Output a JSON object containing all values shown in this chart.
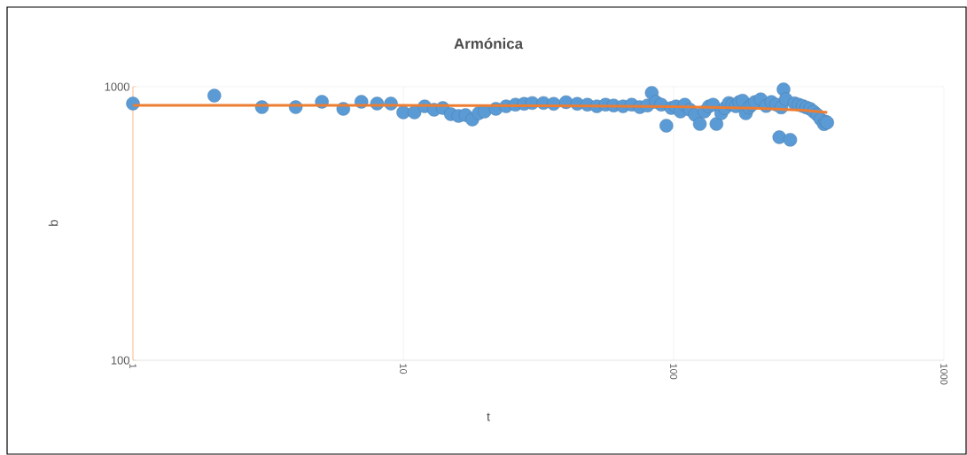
{
  "chart_data": {
    "type": "scatter",
    "title": "Armónica",
    "xlabel": "t",
    "ylabel": "q",
    "log": "xy",
    "xlim": [
      1,
      1000
    ],
    "ylim": [
      100,
      1000
    ],
    "xticks": [
      1,
      10,
      100,
      1000
    ],
    "yticks": [
      100,
      1000
    ],
    "grid": true,
    "series": [
      {
        "color": "#5b9bd5",
        "marker": "circle",
        "x": [
          1,
          2,
          3,
          4,
          5,
          6,
          7,
          8,
          9,
          10,
          11,
          12,
          13,
          14,
          15,
          16,
          17,
          18,
          19,
          20,
          22,
          24,
          26,
          28,
          30,
          33,
          36,
          40,
          44,
          48,
          52,
          56,
          60,
          65,
          70,
          75,
          80,
          83,
          86,
          90,
          94,
          98,
          102,
          106,
          110,
          115,
          120,
          125,
          130,
          135,
          140,
          144,
          150,
          155,
          160,
          165,
          170,
          175,
          180,
          185,
          190,
          195,
          200,
          210,
          220,
          230,
          240,
          246,
          250,
          255,
          260,
          270,
          280,
          290,
          300,
          310,
          320,
          330,
          340,
          350,
          360,
          365,
          370
        ],
        "values": [
          868,
          928,
          842,
          842,
          881,
          830,
          881,
          868,
          868,
          806,
          806,
          848,
          824,
          836,
          794,
          782,
          788,
          759,
          800,
          812,
          830,
          848,
          860,
          866,
          872,
          872,
          866,
          878,
          866,
          860,
          848,
          860,
          854,
          848,
          860,
          842,
          854,
          950,
          880,
          860,
          720,
          836,
          848,
          812,
          860,
          824,
          790,
          731,
          812,
          848,
          860,
          731,
          800,
          836,
          872,
          860,
          848,
          880,
          890,
          800,
          840,
          860,
          880,
          900,
          850,
          880,
          860,
          654,
          840,
          978,
          900,
          640,
          870,
          860,
          850,
          840,
          830,
          810,
          790,
          760,
          730,
          745,
          740
        ]
      },
      {
        "type": "line",
        "color": "#ed7d31",
        "marker": "none",
        "x": [
          1,
          10,
          20,
          50,
          100,
          200,
          300,
          370
        ],
        "values": [
          855,
          855,
          853,
          850,
          845,
          835,
          820,
          806
        ]
      }
    ]
  }
}
